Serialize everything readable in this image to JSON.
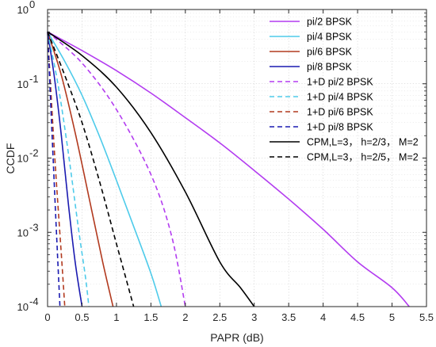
{
  "chart_data": {
    "type": "line",
    "xlabel": "PAPR (dB)",
    "ylabel": "CCDF",
    "xlim": [
      0,
      5.5
    ],
    "ylim": [
      0.0001,
      1
    ],
    "yscale": "log",
    "grid": true,
    "legend_position": "top-right",
    "x_ticks": [
      "0",
      "0.5",
      "1",
      "1.5",
      "2",
      "2.5",
      "3",
      "3.5",
      "4",
      "4.5",
      "5",
      "5.5"
    ],
    "y_ticks": [
      {
        "base": "10",
        "exp": "0"
      },
      {
        "base": "10",
        "exp": "-1"
      },
      {
        "base": "10",
        "exp": "-2"
      },
      {
        "base": "10",
        "exp": "-3"
      },
      {
        "base": "10",
        "exp": "-4"
      }
    ],
    "series": [
      {
        "name": "pi/2 BPSK",
        "color": "#b33cf0",
        "dash": "solid",
        "x": [
          0,
          0.5,
          1,
          1.5,
          2,
          2.5,
          3,
          3.5,
          4,
          4.5,
          5,
          5.25
        ],
        "y": [
          0.5,
          0.28,
          0.15,
          0.075,
          0.035,
          0.016,
          0.0068,
          0.0028,
          0.0011,
          0.0004,
          0.00018,
          0.0001
        ]
      },
      {
        "name": "pi/4 BPSK",
        "color": "#4ecbea",
        "dash": "solid",
        "x": [
          0,
          0.25,
          0.5,
          0.75,
          1,
          1.25,
          1.5,
          1.65
        ],
        "y": [
          0.5,
          0.2,
          0.07,
          0.02,
          0.005,
          0.0012,
          0.00028,
          0.0001
        ]
      },
      {
        "name": "pi/6 BPSK",
        "color": "#b23a1f",
        "dash": "solid",
        "x": [
          0,
          0.2,
          0.4,
          0.6,
          0.8,
          0.95
        ],
        "y": [
          0.5,
          0.13,
          0.022,
          0.003,
          0.0004,
          0.0001
        ]
      },
      {
        "name": "pi/8 BPSK",
        "color": "#1a1ab0",
        "dash": "solid",
        "x": [
          0,
          0.1,
          0.2,
          0.3,
          0.4,
          0.5
        ],
        "y": [
          0.5,
          0.12,
          0.02,
          0.0025,
          0.0004,
          0.0001
        ]
      },
      {
        "name": "1+D pi/2 BPSK",
        "color": "#b33cf0",
        "dash": "dashed",
        "x": [
          0,
          0.5,
          1,
          1.5,
          1.8,
          2
        ],
        "y": [
          0.5,
          0.19,
          0.045,
          0.006,
          0.0009,
          0.0001
        ]
      },
      {
        "name": "1+D pi/4 BPSK",
        "color": "#4ecbea",
        "dash": "dashed",
        "x": [
          0,
          0.15,
          0.3,
          0.45,
          0.55,
          0.6
        ],
        "y": [
          0.5,
          0.1,
          0.012,
          0.0011,
          0.00025,
          0.0001
        ]
      },
      {
        "name": "1+D pi/6 BPSK",
        "color": "#b23a1f",
        "dash": "dashed",
        "x": [
          0,
          0.1,
          0.2,
          0.25
        ],
        "y": [
          0.5,
          0.012,
          0.0005,
          0.0001
        ]
      },
      {
        "name": "1+D pi/8 BPSK",
        "color": "#1a1ab0",
        "dash": "dashed",
        "x": [
          0,
          0.08,
          0.14,
          0.18
        ],
        "y": [
          0.5,
          0.01,
          0.0006,
          0.0001
        ]
      },
      {
        "name": "CPM,L=3， h=2/3， M=2",
        "color": "#000000",
        "dash": "solid",
        "x": [
          0,
          0.5,
          1,
          1.5,
          2,
          2.5,
          2.8,
          3
        ],
        "y": [
          0.5,
          0.24,
          0.09,
          0.022,
          0.0035,
          0.0004,
          0.00018,
          0.0001
        ]
      },
      {
        "name": "CPM,L=3， h=2/5， M=2",
        "color": "#000000",
        "dash": "dashed",
        "x": [
          0,
          0.25,
          0.5,
          0.75,
          1,
          1.25
        ],
        "y": [
          0.5,
          0.13,
          0.03,
          0.005,
          0.0007,
          0.0001
        ]
      }
    ]
  }
}
